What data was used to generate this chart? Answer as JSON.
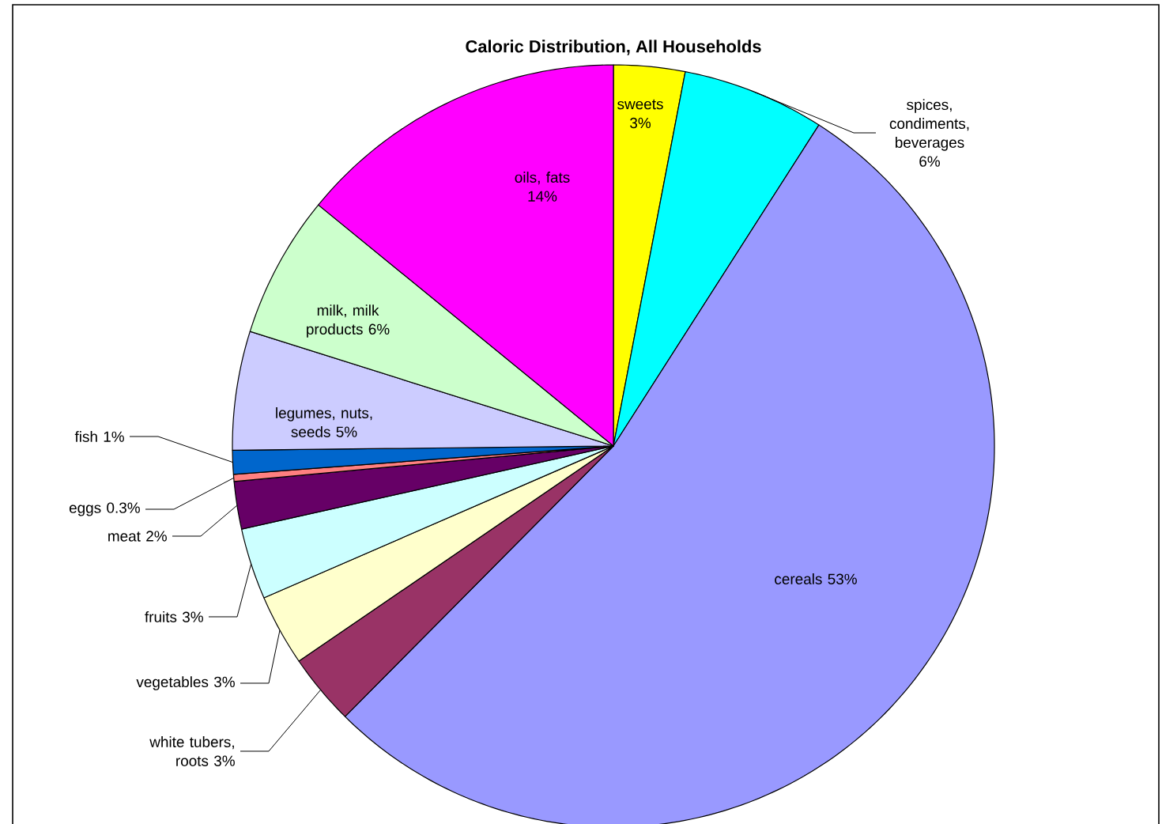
{
  "chart_data": {
    "type": "pie",
    "title": "Caloric Distribution, All Households",
    "categories": [
      "sweets",
      "spices, condiments, beverages",
      "cereals",
      "white tubers, roots",
      "vegetables",
      "fruits",
      "meat",
      "eggs",
      "fish",
      "legumes, nuts, seeds",
      "milk, milk products",
      "oils, fats"
    ],
    "values": [
      3,
      6,
      53,
      3,
      3,
      3,
      2,
      0.3,
      1,
      5,
      6,
      14
    ],
    "value_labels": [
      "3%",
      "6%",
      "53%",
      "3%",
      "3%",
      "3%",
      "2%",
      "0.3%",
      "1%",
      "5%",
      "6%",
      "14%"
    ],
    "colors": [
      "#ffff00",
      "#00ffff",
      "#9999ff",
      "#993366",
      "#ffffcc",
      "#ccffff",
      "#660066",
      "#ff8080",
      "#0066cc",
      "#ccccff",
      "#ccffcc",
      "#ff00ff"
    ]
  }
}
